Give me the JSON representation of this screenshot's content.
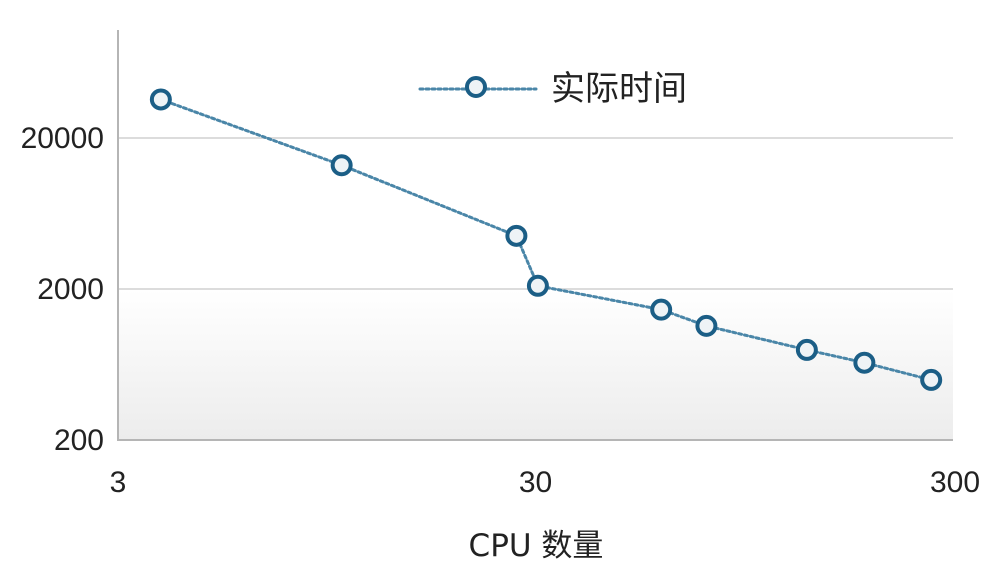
{
  "chart_data": {
    "type": "line",
    "title": "",
    "xlabel": "CPU 数量",
    "ylabel": "",
    "x_scale": "log",
    "y_scale": "log",
    "xlim": [
      3,
      300
    ],
    "ylim": [
      200,
      90000
    ],
    "x_ticks": [
      "3",
      "30",
      "300"
    ],
    "y_ticks": [
      "200",
      "2000",
      "20000"
    ],
    "grid": "horizontal",
    "legend_position": "top-center",
    "series": [
      {
        "name": "实际时间",
        "color": "#4a86a8",
        "marker_color": "#1b5e86",
        "x": [
          3.8,
          10.3,
          27,
          30.4,
          60,
          77,
          134,
          184,
          266
        ],
        "y": [
          36000,
          13200,
          4500,
          2100,
          1460,
          1140,
          790,
          650,
          500
        ]
      }
    ]
  }
}
